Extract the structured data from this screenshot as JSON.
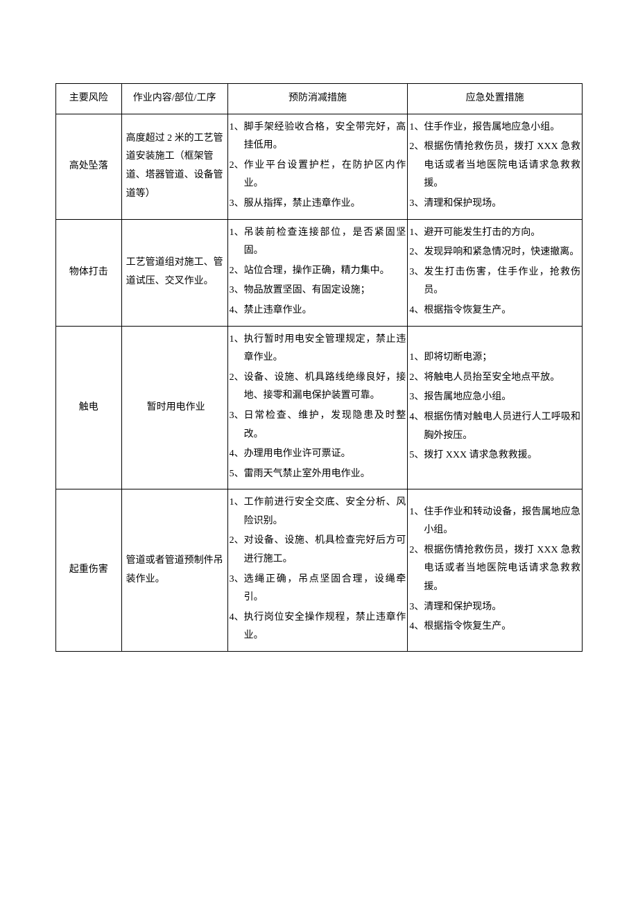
{
  "headers": {
    "risk": "主要风险",
    "scope": "作业内容/部位/工序",
    "prevent": "预防消减措施",
    "emergency": "应急处置措施"
  },
  "rows": [
    {
      "risk": "高处坠落",
      "scope": "高度超过 2 米的工艺管道安装施工（框架管道、塔器管道、设备管道等）",
      "scope_align": "left",
      "prevent": [
        "脚手架经验收合格，安全带完好，高挂低用。",
        "作业平台设置护栏，在防护区内作业。",
        "服从指挥，禁止违章作业。"
      ],
      "emergency": [
        "住手作业，报告属地应急小组。",
        "根据伤情抢救伤员，拨打 XXX 急救电话或者当地医院电话请求急救救援。",
        "清理和保护现场。"
      ]
    },
    {
      "risk": "物体打击",
      "scope": "工艺管道组对施工、管道试压、交叉作业。",
      "scope_align": "left",
      "prevent": [
        "吊装前检查连接部位，是否紧固坚固。",
        "站位合理，操作正确，精力集中。",
        "物品放置坚固、有固定设施；",
        "禁止违章作业。"
      ],
      "emergency": [
        "避开可能发生打击的方向。",
        "发现异响和紧急情况时，快速撤离。",
        "发生打击伤害，住手作业，抢救伤员。",
        "根据指令恢复生产。"
      ]
    },
    {
      "risk": "触电",
      "scope": "暂时用电作业",
      "scope_align": "center",
      "prevent": [
        "执行暂时用电安全管理规定，禁止违章作业。",
        "设备、设施、机具路线绝缘良好，接地、接零和漏电保护装置可靠。",
        "日常检查、维护，发现隐患及时整改。",
        "办理用电作业许可票证。",
        "雷雨天气禁止室外用电作业。"
      ],
      "emergency": [
        "即将切断电源；",
        "将触电人员抬至安全地点平放。",
        "报告属地应急小组。",
        "根据伤情对触电人员进行人工呼吸和胸外按压。",
        "拨打 XXX 请求急救救援。"
      ]
    },
    {
      "risk": "起重伤害",
      "scope": "管道或者管道预制件吊装作业。",
      "scope_align": "left",
      "prevent": [
        "工作前进行安全交底、安全分析、风险识别。",
        "对设备、设施、机具检查完好后方可进行施工。",
        "选绳正确，吊点坚固合理，设绳牵引。",
        "执行岗位安全操作规程，禁止违章作业。"
      ],
      "emergency": [
        "住手作业和转动设备，报告属地应急小组。",
        "根据伤情抢救伤员，拨打 XXX 急救电话或者当地医院电话请求急救救援。",
        "清理和保护现场。",
        "根据指令恢复生产。"
      ]
    }
  ]
}
